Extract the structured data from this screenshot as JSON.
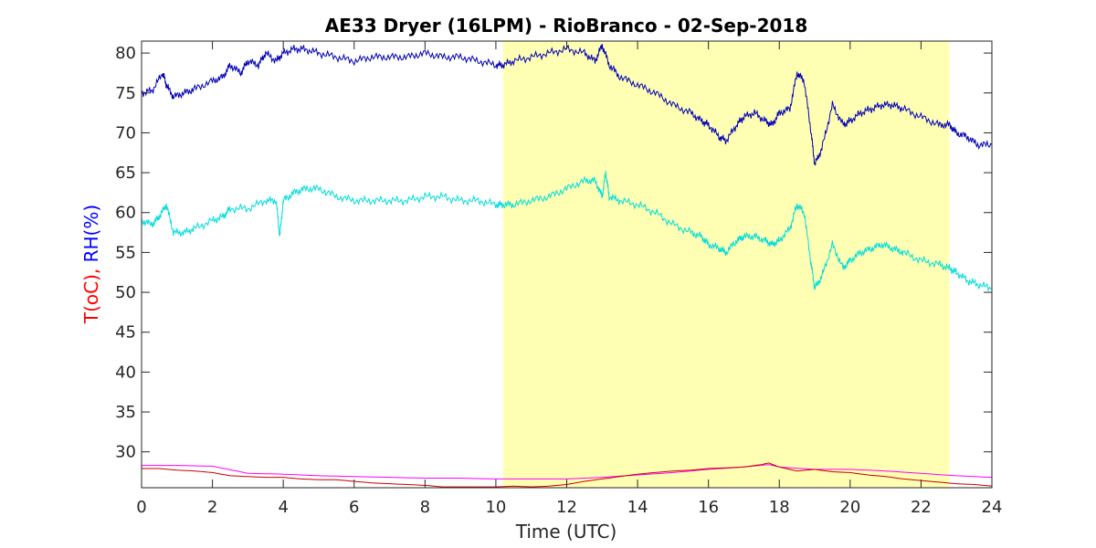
{
  "chart_data": {
    "type": "line",
    "title": "AE33 Dryer (16LPM)  - RioBranco - 02-Sep-2018",
    "xlabel": "Time (UTC)",
    "ylabel_parts": [
      {
        "text": "T(oC), ",
        "color": "#ff0000"
      },
      {
        "text": "RH(%)",
        "color": "#0000ff"
      }
    ],
    "xlim": [
      0,
      24
    ],
    "ylim": [
      25.5,
      81.5
    ],
    "x_ticks": [
      0,
      2,
      4,
      6,
      8,
      10,
      12,
      14,
      16,
      18,
      20,
      22,
      24
    ],
    "y_ticks": [
      30,
      35,
      40,
      45,
      50,
      55,
      60,
      65,
      70,
      75,
      80
    ],
    "highlight": {
      "x_start": 10.2,
      "x_end": 22.8,
      "color": "#ffffb4"
    },
    "grid": false,
    "series": [
      {
        "color": "#0000b4",
        "x": [
          0,
          0.3,
          0.6,
          0.7,
          0.9,
          1.2,
          1.5,
          2.0,
          2.3,
          2.5,
          2.8,
          3.0,
          3.3,
          3.5,
          3.8,
          4.0,
          4.3,
          4.6,
          5.0,
          5.5,
          6.0,
          6.5,
          7.0,
          7.5,
          8.0,
          8.5,
          9.0,
          9.5,
          10.0,
          10.2,
          10.5,
          11.0,
          11.5,
          12.0,
          12.5,
          12.8,
          13.0,
          13.2,
          13.5,
          14.0,
          14.5,
          15.0,
          15.5,
          15.8,
          16.0,
          16.3,
          16.5,
          16.8,
          17.0,
          17.3,
          17.6,
          17.8,
          18.0,
          18.3,
          18.5,
          18.7,
          18.9,
          19.0,
          19.2,
          19.5,
          19.8,
          20.0,
          20.3,
          20.6,
          20.9,
          21.2,
          21.5,
          22.0,
          22.5,
          22.8,
          23.0,
          23.3,
          23.6,
          24
        ],
        "y": [
          75,
          75.3,
          77.5,
          76,
          74.5,
          75,
          75.5,
          76.5,
          77,
          78.5,
          77.5,
          79,
          78.5,
          80,
          79,
          80,
          80.5,
          80.5,
          80,
          79.5,
          79,
          79.5,
          79.5,
          79.5,
          80,
          79.5,
          79.5,
          79,
          78.5,
          78.5,
          79,
          79.5,
          80,
          80.5,
          80,
          79,
          81,
          78.5,
          77,
          76,
          75,
          73.5,
          72.5,
          71.5,
          71,
          69.5,
          69,
          71,
          72,
          72.5,
          71.5,
          71,
          72.5,
          73,
          77.5,
          76.5,
          70,
          66,
          68,
          73.5,
          71,
          71.5,
          72.5,
          73,
          73.5,
          73.5,
          73,
          72,
          71,
          71,
          70,
          69.5,
          68.5,
          68.5
        ]
      },
      {
        "color": "#00dcdc",
        "x": [
          0,
          0.3,
          0.5,
          0.7,
          0.9,
          1.2,
          1.5,
          2.0,
          2.3,
          2.5,
          3.0,
          3.5,
          3.8,
          3.9,
          4.0,
          4.3,
          4.6,
          5.0,
          5.5,
          6.0,
          6.5,
          7.0,
          7.5,
          8.0,
          8.5,
          9.0,
          9.5,
          10.0,
          10.2,
          10.5,
          11.0,
          11.5,
          12.0,
          12.5,
          12.8,
          13.0,
          13.1,
          13.2,
          13.5,
          14.0,
          14.5,
          15.0,
          15.5,
          15.8,
          16.0,
          16.3,
          16.5,
          16.8,
          17.0,
          17.3,
          17.6,
          17.8,
          18.0,
          18.3,
          18.5,
          18.7,
          18.9,
          19.0,
          19.2,
          19.5,
          19.8,
          20.0,
          20.3,
          20.6,
          20.9,
          21.2,
          21.5,
          22.0,
          22.5,
          22.8,
          23.0,
          23.3,
          23.6,
          24
        ],
        "y": [
          59,
          58.5,
          59.5,
          61,
          57.5,
          57.5,
          58,
          59,
          59.5,
          60.5,
          60.5,
          61.5,
          61.5,
          57,
          61.5,
          62.5,
          63,
          63,
          62,
          61.5,
          61.5,
          61.5,
          61.5,
          62,
          62,
          61.5,
          61.5,
          61,
          61,
          61,
          61.5,
          62,
          63,
          64,
          64,
          62,
          65,
          62,
          61.5,
          61,
          60,
          58.5,
          57.5,
          57,
          56,
          55.5,
          55,
          56.5,
          57,
          57,
          56.5,
          56,
          56.5,
          58,
          61,
          60,
          53.5,
          50.5,
          52,
          56,
          53,
          54,
          55,
          55.5,
          56,
          55.5,
          55,
          54,
          53.5,
          53,
          52.5,
          51.5,
          51,
          50.5
        ]
      },
      {
        "color": "#ff00ff",
        "x": [
          0,
          1,
          2,
          3,
          4,
          5,
          6,
          7,
          8,
          9,
          10,
          11,
          12,
          13,
          14,
          15,
          16,
          17,
          17.7,
          18,
          19,
          20,
          21,
          22,
          23,
          24
        ],
        "y": [
          28.3,
          28.3,
          28.2,
          27.3,
          27.2,
          27.0,
          26.9,
          26.8,
          26.7,
          26.7,
          26.6,
          26.6,
          26.6,
          26.8,
          27.1,
          27.4,
          27.8,
          28.1,
          28.4,
          28.1,
          27.8,
          27.8,
          27.6,
          27.3,
          27.0,
          26.8
        ]
      },
      {
        "color": "#c80000",
        "x": [
          0,
          0.5,
          1,
          1.5,
          2,
          2.5,
          3,
          3.5,
          4,
          4.5,
          5,
          5.5,
          6,
          6.5,
          7,
          7.5,
          8,
          8.5,
          9,
          9.5,
          10,
          10.5,
          11,
          11.5,
          12,
          12.5,
          13,
          13.5,
          14,
          14.5,
          15,
          15.5,
          16,
          16.5,
          17,
          17.5,
          17.7,
          18,
          18.5,
          19,
          19.5,
          20,
          20.5,
          21,
          21.5,
          22,
          22.5,
          23,
          23.5,
          24
        ],
        "y": [
          27.9,
          27.9,
          27.7,
          27.6,
          27.4,
          27.0,
          26.9,
          26.8,
          26.8,
          26.6,
          26.5,
          26.5,
          26.3,
          26.1,
          26.0,
          25.9,
          25.8,
          25.6,
          25.6,
          25.6,
          25.6,
          25.7,
          25.6,
          25.7,
          25.9,
          26.3,
          26.6,
          26.9,
          27.2,
          27.4,
          27.6,
          27.7,
          27.9,
          28.0,
          28.1,
          28.4,
          28.6,
          28.1,
          27.6,
          27.8,
          27.5,
          27.4,
          27.1,
          26.9,
          26.6,
          26.4,
          26.2,
          26.0,
          25.9,
          25.7
        ]
      }
    ]
  }
}
